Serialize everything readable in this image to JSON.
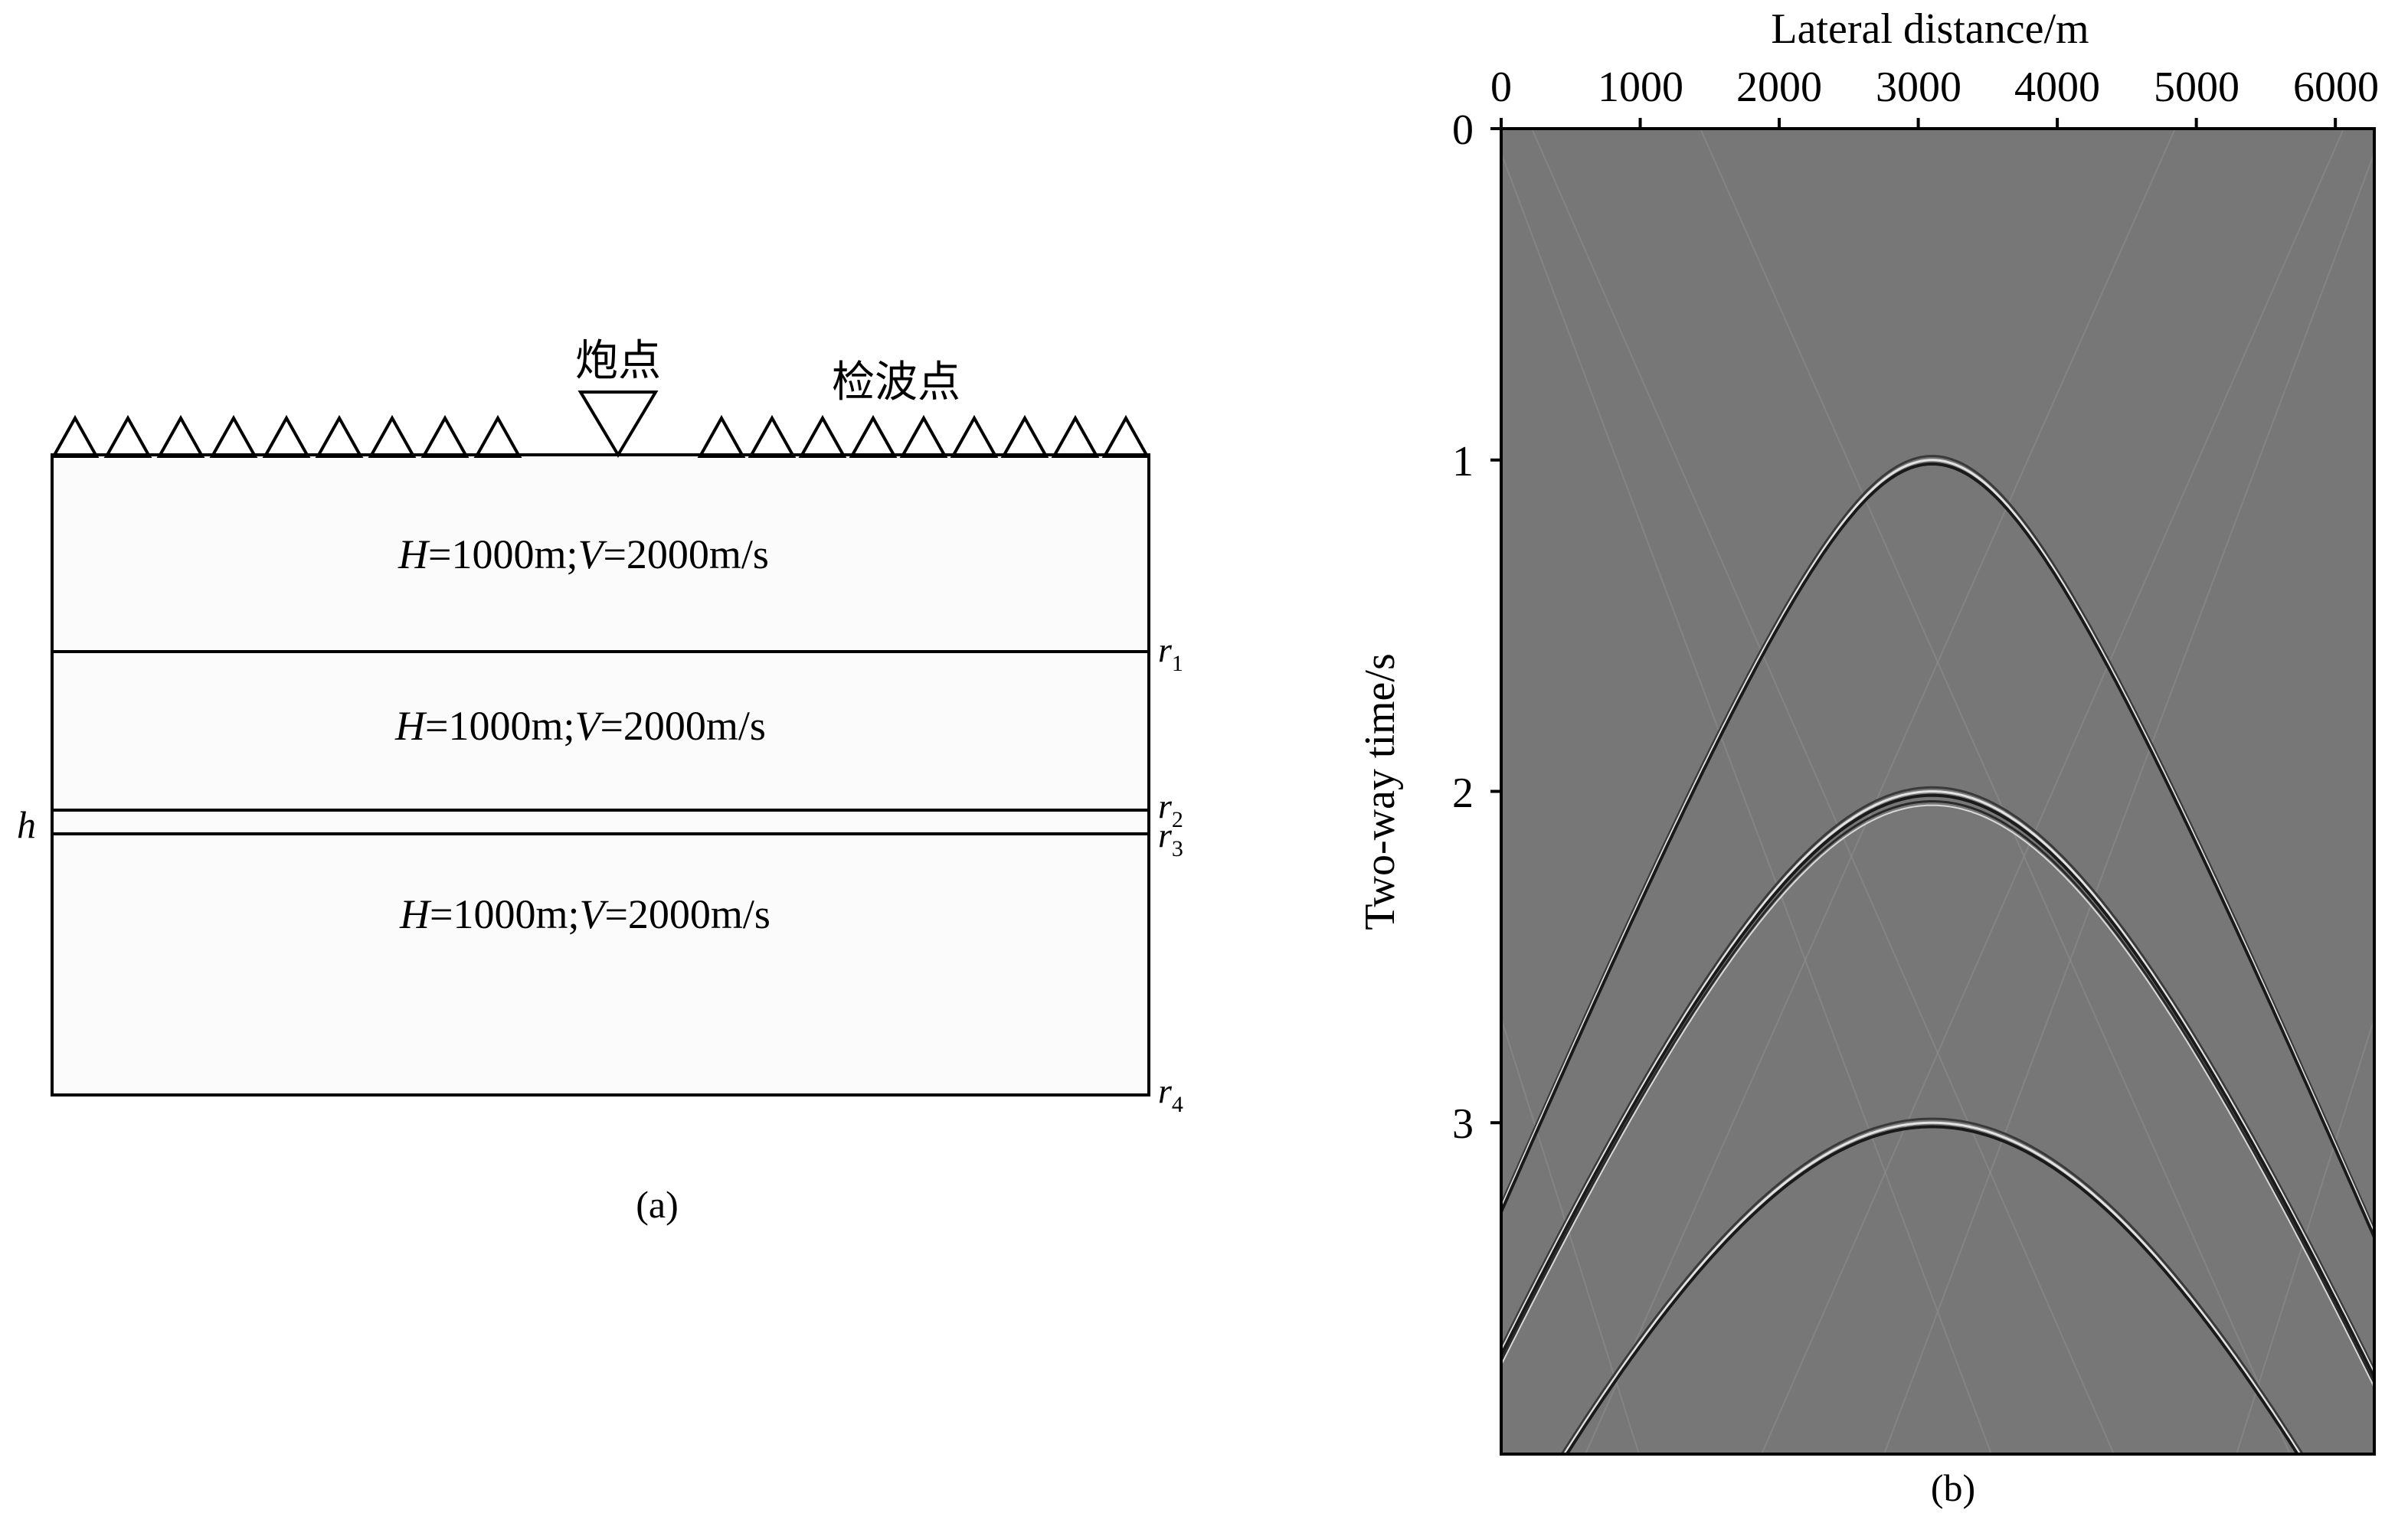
{
  "model": {
    "layers": [
      {
        "label_H": "H",
        "label_eq1": "=1000m;",
        "label_V": "V",
        "label_eq2": "=2000m/s"
      },
      {
        "label_H": "H",
        "label_eq1": "=1000m;",
        "label_V": "V",
        "label_eq2": "=2000m/s"
      },
      {
        "label_H": "H",
        "label_eq1": "=1000m;",
        "label_V": "V",
        "label_eq2": "=2000m/s"
      }
    ],
    "shot_label": "炮点",
    "receiver_label": "检波点",
    "interfaces": [
      {
        "letter": "r",
        "sub": "1"
      },
      {
        "letter": "r",
        "sub": "2"
      },
      {
        "letter": "r",
        "sub": "3"
      },
      {
        "letter": "r",
        "sub": "4"
      }
    ],
    "thin_layer_label": "h",
    "caption": "(a)"
  },
  "gather": {
    "caption": "(b)",
    "x_title": "Lateral distance/m",
    "y_title": "Two-way time/s",
    "x_ticks": [
      "0",
      "1000",
      "2000",
      "3000",
      "4000",
      "5000",
      "6000"
    ],
    "y_ticks": [
      "0",
      "1",
      "2",
      "3"
    ],
    "background_color": "#777777"
  },
  "chart_data": {
    "type": "heatmap",
    "title": "",
    "xlabel": "Lateral distance/m",
    "ylabel": "Two-way time/s",
    "xlim": [
      0,
      6280
    ],
    "ylim": [
      0,
      4
    ],
    "source_x": 3100,
    "x_ticks": [
      0,
      1000,
      2000,
      3000,
      4000,
      5000,
      6000
    ],
    "y_ticks": [
      0,
      1,
      2,
      3
    ],
    "reflections": [
      {
        "t0": 1.0,
        "velocity": 2000
      },
      {
        "t0": 2.0,
        "velocity": 2000
      },
      {
        "t0": 3.0,
        "velocity": 2000
      }
    ]
  }
}
